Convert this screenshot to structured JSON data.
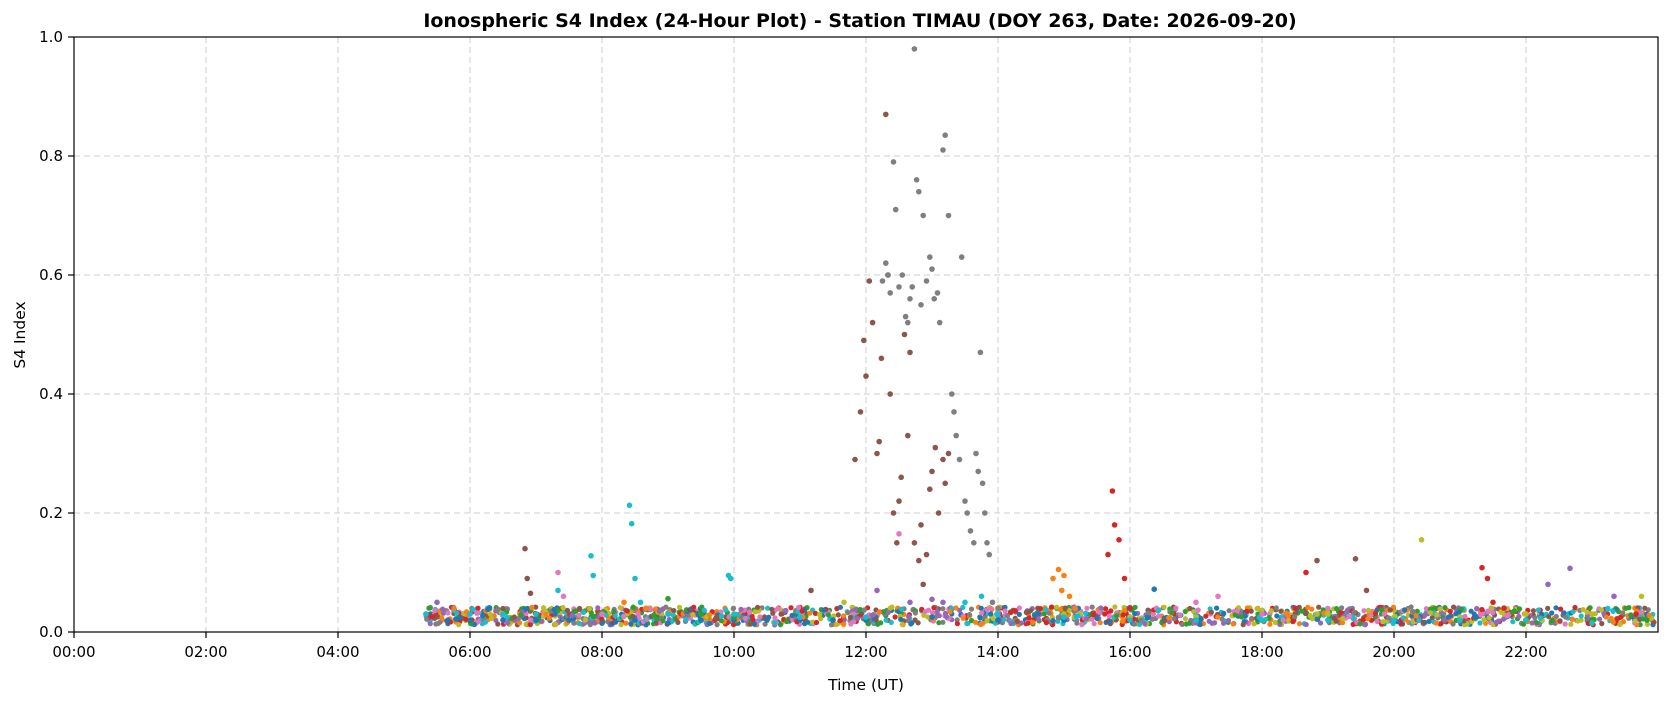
{
  "chart_data": {
    "type": "scatter",
    "title": "Ionospheric S4 Index (24-Hour Plot) - Station TIMAU (DOY 263, Date: 2026-09-20)",
    "xlabel": "Time (UT)",
    "ylabel": "S4 Index",
    "xlim": [
      "00:00",
      "24:00"
    ],
    "ylim": [
      0,
      1.0
    ],
    "x_tick_labels": [
      "00:00",
      "02:00",
      "04:00",
      "06:00",
      "08:00",
      "10:00",
      "12:00",
      "14:00",
      "16:00",
      "18:00",
      "20:00",
      "22:00"
    ],
    "y_tick_labels": [
      "0.0",
      "0.2",
      "0.4",
      "0.6",
      "0.8",
      "1.0"
    ],
    "grid": true,
    "series": [
      {
        "color": "#1f77b4",
        "points": [
          [
            "05:20",
            0.03
          ],
          [
            "05:40",
            0.02
          ],
          [
            "06:00",
            0.02
          ],
          [
            "06:30",
            0.02
          ],
          [
            "07:00",
            0.02
          ],
          [
            "07:30",
            0.02
          ],
          [
            "08:00",
            0.015
          ],
          [
            "08:30",
            0.02
          ],
          [
            "09:00",
            0.015
          ],
          [
            "09:30",
            0.02
          ],
          [
            "10:00",
            0.02
          ],
          [
            "10:30",
            0.02
          ],
          [
            "11:00",
            0.02
          ],
          [
            "11:30",
            0.02
          ],
          [
            "12:00",
            0.02
          ],
          [
            "13:00",
            0.025
          ],
          [
            "14:00",
            0.02
          ],
          [
            "15:00",
            0.02
          ],
          [
            "16:00",
            0.025
          ],
          [
            "16:22",
            0.072
          ],
          [
            "17:00",
            0.02
          ],
          [
            "18:00",
            0.02
          ],
          [
            "19:00",
            0.02
          ],
          [
            "20:00",
            0.02
          ],
          [
            "21:00",
            0.025
          ],
          [
            "22:00",
            0.02
          ],
          [
            "23:00",
            0.02
          ]
        ]
      },
      {
        "color": "#ff7f0e",
        "points": [
          [
            "08:20",
            0.05
          ],
          [
            "08:40",
            0.04
          ],
          [
            "14:50",
            0.09
          ],
          [
            "14:55",
            0.105
          ],
          [
            "14:58",
            0.07
          ],
          [
            "15:00",
            0.095
          ],
          [
            "15:05",
            0.06
          ],
          [
            "15:10",
            0.04
          ]
        ]
      },
      {
        "color": "#2ca02c",
        "points": [
          [
            "09:00",
            0.056
          ],
          [
            "09:30",
            0.03
          ],
          [
            "10:00",
            0.025
          ],
          [
            "21:00",
            0.02
          ],
          [
            "22:00",
            0.02
          ],
          [
            "23:00",
            0.02
          ],
          [
            "23:50",
            0.02
          ]
        ]
      },
      {
        "color": "#d62728",
        "points": [
          [
            "15:40",
            0.13
          ],
          [
            "15:44",
            0.237
          ],
          [
            "15:46",
            0.18
          ],
          [
            "15:50",
            0.155
          ],
          [
            "15:55",
            0.09
          ],
          [
            "16:00",
            0.04
          ],
          [
            "18:30",
            0.04
          ],
          [
            "18:40",
            0.1
          ],
          [
            "21:20",
            0.108
          ],
          [
            "21:25",
            0.09
          ],
          [
            "21:30",
            0.05
          ],
          [
            "21:40",
            0.04
          ],
          [
            "23:40",
            0.03
          ]
        ]
      },
      {
        "color": "#9467bd",
        "points": [
          [
            "05:30",
            0.05
          ],
          [
            "12:10",
            0.07
          ],
          [
            "12:40",
            0.05
          ],
          [
            "13:00",
            0.055
          ],
          [
            "13:10",
            0.05
          ],
          [
            "22:40",
            0.107
          ],
          [
            "22:20",
            0.08
          ],
          [
            "23:20",
            0.06
          ]
        ]
      },
      {
        "color": "#8c564b",
        "points": [
          [
            "06:50",
            0.14
          ],
          [
            "06:52",
            0.09
          ],
          [
            "06:55",
            0.065
          ],
          [
            "11:10",
            0.07
          ],
          [
            "11:50",
            0.29
          ],
          [
            "11:55",
            0.37
          ],
          [
            "11:58",
            0.49
          ],
          [
            "12:00",
            0.43
          ],
          [
            "12:03",
            0.59
          ],
          [
            "12:06",
            0.52
          ],
          [
            "12:10",
            0.3
          ],
          [
            "12:12",
            0.32
          ],
          [
            "12:14",
            0.46
          ],
          [
            "12:18",
            0.87
          ],
          [
            "12:20",
            0.6
          ],
          [
            "12:22",
            0.4
          ],
          [
            "12:25",
            0.2
          ],
          [
            "12:28",
            0.15
          ],
          [
            "12:30",
            0.22
          ],
          [
            "12:32",
            0.26
          ],
          [
            "12:35",
            0.5
          ],
          [
            "12:38",
            0.33
          ],
          [
            "12:40",
            0.47
          ],
          [
            "12:44",
            0.15
          ],
          [
            "12:48",
            0.12
          ],
          [
            "12:50",
            0.18
          ],
          [
            "12:52",
            0.08
          ],
          [
            "12:55",
            0.13
          ],
          [
            "12:58",
            0.24
          ],
          [
            "13:00",
            0.27
          ],
          [
            "13:03",
            0.31
          ],
          [
            "13:06",
            0.2
          ],
          [
            "13:10",
            0.29
          ],
          [
            "13:12",
            0.25
          ],
          [
            "13:15",
            0.3
          ],
          [
            "18:50",
            0.12
          ],
          [
            "19:25",
            0.123
          ],
          [
            "19:35",
            0.07
          ],
          [
            "23:00",
            0.03
          ]
        ]
      },
      {
        "color": "#e377c2",
        "points": [
          [
            "07:20",
            0.1
          ],
          [
            "07:25",
            0.06
          ],
          [
            "08:00",
            0.03
          ],
          [
            "11:00",
            0.025
          ],
          [
            "12:30",
            0.165
          ],
          [
            "14:00",
            0.035
          ],
          [
            "15:00",
            0.03
          ],
          [
            "17:00",
            0.05
          ],
          [
            "17:20",
            0.06
          ],
          [
            "18:00",
            0.03
          ]
        ]
      },
      {
        "color": "#7f7f7f",
        "points": [
          [
            "12:15",
            0.59
          ],
          [
            "12:18",
            0.62
          ],
          [
            "12:20",
            0.6
          ],
          [
            "12:22",
            0.57
          ],
          [
            "12:25",
            0.79
          ],
          [
            "12:27",
            0.71
          ],
          [
            "12:30",
            0.58
          ],
          [
            "12:33",
            0.6
          ],
          [
            "12:36",
            0.53
          ],
          [
            "12:38",
            0.52
          ],
          [
            "12:40",
            0.56
          ],
          [
            "12:42",
            0.58
          ],
          [
            "12:44",
            0.98
          ],
          [
            "12:46",
            0.76
          ],
          [
            "12:48",
            0.74
          ],
          [
            "12:50",
            0.55
          ],
          [
            "12:52",
            0.7
          ],
          [
            "12:55",
            0.59
          ],
          [
            "12:58",
            0.63
          ],
          [
            "13:00",
            0.61
          ],
          [
            "13:02",
            0.56
          ],
          [
            "13:05",
            0.57
          ],
          [
            "13:07",
            0.52
          ],
          [
            "13:10",
            0.81
          ],
          [
            "13:12",
            0.835
          ],
          [
            "13:15",
            0.7
          ],
          [
            "13:18",
            0.4
          ],
          [
            "13:20",
            0.37
          ],
          [
            "13:22",
            0.33
          ],
          [
            "13:25",
            0.29
          ],
          [
            "13:27",
            0.63
          ],
          [
            "13:30",
            0.22
          ],
          [
            "13:32",
            0.2
          ],
          [
            "13:35",
            0.17
          ],
          [
            "13:38",
            0.15
          ],
          [
            "13:40",
            0.3
          ],
          [
            "13:42",
            0.27
          ],
          [
            "13:44",
            0.47
          ],
          [
            "13:46",
            0.25
          ],
          [
            "13:48",
            0.2
          ],
          [
            "13:50",
            0.15
          ],
          [
            "13:52",
            0.13
          ],
          [
            "13:55",
            0.05
          ],
          [
            "14:00",
            0.04
          ]
        ]
      },
      {
        "color": "#bcbd22",
        "points": [
          [
            "11:40",
            0.05
          ],
          [
            "15:00",
            0.03
          ],
          [
            "16:00",
            0.025
          ],
          [
            "17:00",
            0.025
          ],
          [
            "18:00",
            0.02
          ],
          [
            "18:50",
            0.03
          ],
          [
            "19:00",
            0.03
          ],
          [
            "20:00",
            0.025
          ],
          [
            "20:25",
            0.155
          ],
          [
            "21:00",
            0.025
          ],
          [
            "22:00",
            0.03
          ],
          [
            "23:00",
            0.03
          ],
          [
            "23:45",
            0.06
          ]
        ]
      },
      {
        "color": "#17becf",
        "points": [
          [
            "05:20",
            0.03
          ],
          [
            "06:00",
            0.03
          ],
          [
            "06:30",
            0.03
          ],
          [
            "07:00",
            0.03
          ],
          [
            "07:20",
            0.07
          ],
          [
            "07:50",
            0.128
          ],
          [
            "07:52",
            0.095
          ],
          [
            "08:25",
            0.213
          ],
          [
            "08:27",
            0.182
          ],
          [
            "08:30",
            0.09
          ],
          [
            "08:35",
            0.05
          ],
          [
            "09:00",
            0.03
          ],
          [
            "09:55",
            0.095
          ],
          [
            "09:57",
            0.09
          ],
          [
            "10:00",
            0.03
          ],
          [
            "11:00",
            0.025
          ],
          [
            "12:00",
            0.025
          ],
          [
            "13:30",
            0.05
          ],
          [
            "13:45",
            0.06
          ],
          [
            "14:00",
            0.03
          ],
          [
            "15:00",
            0.025
          ],
          [
            "16:00",
            0.02
          ],
          [
            "17:00",
            0.02
          ],
          [
            "18:00",
            0.02
          ],
          [
            "19:00",
            0.02
          ],
          [
            "20:00",
            0.02
          ],
          [
            "21:00",
            0.02
          ],
          [
            "22:00",
            0.02
          ],
          [
            "23:00",
            0.015
          ]
        ]
      }
    ]
  }
}
